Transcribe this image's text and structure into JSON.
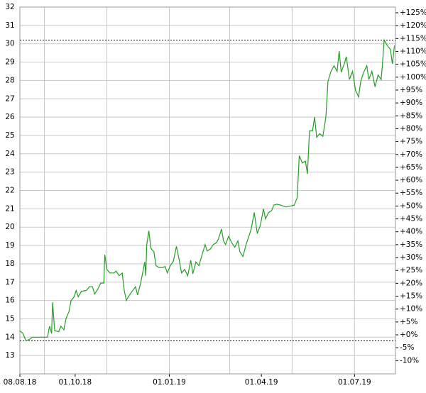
{
  "chart_data": {
    "type": "line",
    "x": [
      "2018-08-08",
      "2018-08-11",
      "2018-08-14",
      "2018-08-18",
      "2018-08-20",
      "2018-09-04",
      "2018-09-06",
      "2018-09-08",
      "2018-09-09",
      "2018-09-11",
      "2018-09-15",
      "2018-09-17",
      "2018-09-20",
      "2018-09-22",
      "2018-09-25",
      "2018-09-27",
      "2018-09-30",
      "2018-10-02",
      "2018-10-04",
      "2018-10-07",
      "2018-10-12",
      "2018-10-15",
      "2018-10-18",
      "2018-10-20",
      "2018-10-23",
      "2018-10-26",
      "2018-10-29",
      "2018-10-30",
      "2018-11-01",
      "2018-11-04",
      "2018-11-08",
      "2018-11-10",
      "2018-11-13",
      "2018-11-16",
      "2018-11-18",
      "2018-11-20",
      "2018-11-22",
      "2018-11-25",
      "2018-11-29",
      "2018-12-01",
      "2018-12-04",
      "2018-12-08",
      "2018-12-09",
      "2018-12-10",
      "2018-12-12",
      "2018-12-14",
      "2018-12-17",
      "2018-12-19",
      "2018-12-22",
      "2018-12-25",
      "2018-12-28",
      "2018-12-30",
      "2019-01-02",
      "2019-01-05",
      "2019-01-08",
      "2019-01-11",
      "2019-01-13",
      "2019-01-16",
      "2019-01-19",
      "2019-01-22",
      "2019-01-24",
      "2019-01-27",
      "2019-01-30",
      "2019-02-02",
      "2019-02-05",
      "2019-02-07",
      "2019-02-10",
      "2019-02-13",
      "2019-02-16",
      "2019-02-18",
      "2019-02-21",
      "2019-02-23",
      "2019-02-25",
      "2019-02-28",
      "2019-03-03",
      "2019-03-06",
      "2019-03-09",
      "2019-03-11",
      "2019-03-14",
      "2019-03-17",
      "2019-03-20",
      "2019-03-22",
      "2019-03-25",
      "2019-03-28",
      "2019-03-31",
      "2019-04-03",
      "2019-04-05",
      "2019-04-08",
      "2019-04-11",
      "2019-04-13",
      "2019-04-16",
      "2019-04-20",
      "2019-04-25",
      "2019-05-03",
      "2019-05-06",
      "2019-05-08",
      "2019-05-11",
      "2019-05-14",
      "2019-05-16",
      "2019-05-18",
      "2019-05-21",
      "2019-05-23",
      "2019-05-25",
      "2019-05-28",
      "2019-05-31",
      "2019-06-03",
      "2019-06-05",
      "2019-06-08",
      "2019-06-11",
      "2019-06-14",
      "2019-06-16",
      "2019-06-18",
      "2019-06-21",
      "2019-06-23",
      "2019-06-26",
      "2019-06-29",
      "2019-07-02",
      "2019-07-05",
      "2019-07-07",
      "2019-07-10",
      "2019-07-13",
      "2019-07-15",
      "2019-07-18",
      "2019-07-21",
      "2019-07-24",
      "2019-07-27",
      "2019-07-28",
      "2019-07-30",
      "2019-08-02",
      "2019-08-05",
      "2019-08-07",
      "2019-08-09"
    ],
    "series": [
      {
        "color": "#22a022",
        "values": [
          14.35,
          14.2,
          13.8,
          13.9,
          14.0,
          14.0,
          14.6,
          14.2,
          15.9,
          14.35,
          14.3,
          14.6,
          14.4,
          15.0,
          15.4,
          16.0,
          16.2,
          16.55,
          16.2,
          16.5,
          16.55,
          16.75,
          16.75,
          16.35,
          16.6,
          16.95,
          16.95,
          18.5,
          17.7,
          17.5,
          17.5,
          17.6,
          17.35,
          17.5,
          16.55,
          16.0,
          16.2,
          16.45,
          16.75,
          16.3,
          16.95,
          18.1,
          17.35,
          19.05,
          19.8,
          18.85,
          18.65,
          17.9,
          17.8,
          17.8,
          17.85,
          17.5,
          17.9,
          18.15,
          18.95,
          18.1,
          17.5,
          17.7,
          17.35,
          18.2,
          17.45,
          18.1,
          17.9,
          18.5,
          19.05,
          18.7,
          18.8,
          19.05,
          19.15,
          19.35,
          19.9,
          19.25,
          19.05,
          19.5,
          19.15,
          18.9,
          19.25,
          18.65,
          18.4,
          19.05,
          19.55,
          19.9,
          20.8,
          19.65,
          20.1,
          21.0,
          20.45,
          20.8,
          20.9,
          21.2,
          21.25,
          21.2,
          21.1,
          21.2,
          21.6,
          23.9,
          23.5,
          23.6,
          22.9,
          25.25,
          25.25,
          26.0,
          24.9,
          25.1,
          24.95,
          26.0,
          27.95,
          28.5,
          28.8,
          28.5,
          29.6,
          28.45,
          28.9,
          29.3,
          28.05,
          28.5,
          27.45,
          27.1,
          27.95,
          28.45,
          28.8,
          28.05,
          28.5,
          27.65,
          28.3,
          28.05,
          28.7,
          30.2,
          29.9,
          29.7,
          28.9,
          29.9
        ]
      }
    ],
    "xlim": [
      "2018-08-08",
      "2019-08-10"
    ],
    "xticks": [
      {
        "value": "2018-08-08",
        "label": "08.08.18"
      },
      {
        "value": "2018-10-01",
        "label": "01.10.18"
      },
      {
        "value": "2019-01-01",
        "label": "01.01.19"
      },
      {
        "value": "2019-04-01",
        "label": "01.04.19"
      },
      {
        "value": "2019-07-01",
        "label": "01.07.19"
      }
    ],
    "xgrid": [
      "2018-09-01",
      "2018-11-01",
      "2019-01-01",
      "2019-03-01",
      "2019-05-01",
      "2019-07-01"
    ],
    "ylim": [
      12,
      32
    ],
    "yticks": [
      13,
      14,
      15,
      16,
      17,
      18,
      19,
      20,
      21,
      22,
      23,
      24,
      25,
      26,
      27,
      28,
      29,
      30,
      31,
      32
    ],
    "y2lim": [
      -15.14,
      127.2
    ],
    "y2ticks": [
      {
        "value": -10,
        "label": "-10%"
      },
      {
        "value": -5,
        "label": "-5%"
      },
      {
        "value": 0,
        "label": "+0%"
      },
      {
        "value": 5,
        "label": "+5%"
      },
      {
        "value": 10,
        "label": "+10%"
      },
      {
        "value": 15,
        "label": "+15%"
      },
      {
        "value": 20,
        "label": "+20%"
      },
      {
        "value": 25,
        "label": "+25%"
      },
      {
        "value": 30,
        "label": "+30%"
      },
      {
        "value": 35,
        "label": "+35%"
      },
      {
        "value": 40,
        "label": "+40%"
      },
      {
        "value": 45,
        "label": "+45%"
      },
      {
        "value": 50,
        "label": "+50%"
      },
      {
        "value": 55,
        "label": "+55%"
      },
      {
        "value": 60,
        "label": "+60%"
      },
      {
        "value": 65,
        "label": "+65%"
      },
      {
        "value": 70,
        "label": "+70%"
      },
      {
        "value": 75,
        "label": "+75%"
      },
      {
        "value": 80,
        "label": "+80%"
      },
      {
        "value": 85,
        "label": "+85%"
      },
      {
        "value": 90,
        "label": "+90%"
      },
      {
        "value": 95,
        "label": "+95%"
      },
      {
        "value": 100,
        "label": "+100%"
      },
      {
        "value": 105,
        "label": "+105%"
      },
      {
        "value": 110,
        "label": "+110%"
      },
      {
        "value": 115,
        "label": "+115%"
      },
      {
        "value": 120,
        "label": "+120%"
      },
      {
        "value": 125,
        "label": "+125%"
      }
    ],
    "hlines": [
      30.2,
      13.8
    ],
    "grid": true
  }
}
